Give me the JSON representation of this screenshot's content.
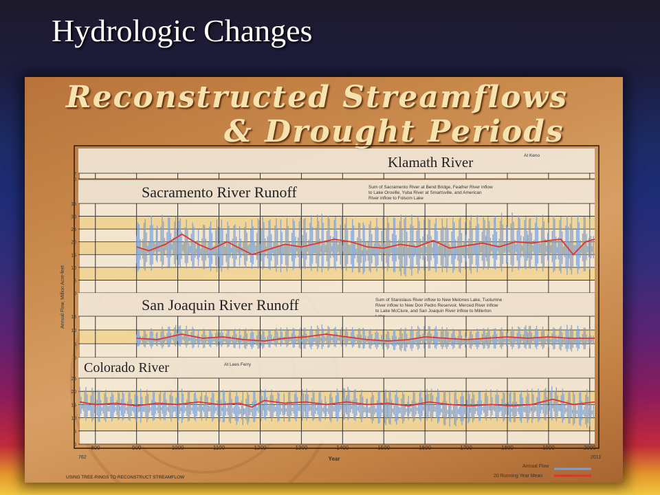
{
  "slide": {
    "title": "Hydrologic Changes"
  },
  "poster": {
    "title_line1": "Reconstructed Streamflows",
    "title_line2": "& Drought Periods",
    "footer": "USING TREE-RINGS TO RECONSTRUCT STREAMFLOW"
  },
  "colors": {
    "annual_flow": "#7b9fd1",
    "running_mean": "#e0332b",
    "band_yellow": "#f4dca0",
    "panel_light": "#f3ede2",
    "grid": "#000000"
  },
  "chart_data": {
    "type": "line",
    "xlabel": "Year",
    "ylabel": "Annual Flow, Million Acre-feet",
    "xlim": [
      762,
      2012
    ],
    "x_ticks": [
      800,
      900,
      1000,
      1100,
      1200,
      1300,
      1400,
      1500,
      1600,
      1700,
      1800,
      1900,
      2000
    ],
    "x_edge_labels": [
      "762",
      "2012"
    ],
    "legend": {
      "position": "bottom-right",
      "entries": [
        {
          "label": "Annual Flow",
          "color": "#7b9fd1"
        },
        {
          "label": "20 Running Year Mean",
          "color": "#e0332b"
        }
      ]
    },
    "panels": [
      {
        "name": "Klamath River",
        "subtitle": "At Keno",
        "ylim": [
          0,
          2
        ],
        "y_ticks": [
          0,
          2
        ],
        "start_year": 1400,
        "annual_flow": [],
        "running_mean": []
      },
      {
        "name": "Sacramento River Runoff",
        "subtitle": "Sum of Sacramento River at Bend Bridge, Feather River inflow to Lake Oroville, Yuba River at Smartsville, and American River inflow to Folsom Lake",
        "ylim": [
          0,
          35
        ],
        "y_ticks": [
          0,
          5,
          10,
          15,
          20,
          25,
          30,
          35
        ],
        "start_year": 900,
        "annual_flow": [
          {
            "year": 900,
            "min": 8,
            "max": 28
          },
          {
            "year": 950,
            "min": 9,
            "max": 31
          },
          {
            "year": 1000,
            "min": 10,
            "max": 30
          },
          {
            "year": 1050,
            "min": 9,
            "max": 27
          },
          {
            "year": 1100,
            "min": 8,
            "max": 29
          },
          {
            "year": 1150,
            "min": 10,
            "max": 27
          },
          {
            "year": 1200,
            "min": 9,
            "max": 30
          },
          {
            "year": 1250,
            "min": 8,
            "max": 29
          },
          {
            "year": 1300,
            "min": 9,
            "max": 30
          },
          {
            "year": 1350,
            "min": 8,
            "max": 31
          },
          {
            "year": 1400,
            "min": 9,
            "max": 30
          },
          {
            "year": 1450,
            "min": 7,
            "max": 28
          },
          {
            "year": 1500,
            "min": 9,
            "max": 30
          },
          {
            "year": 1550,
            "min": 6,
            "max": 31
          },
          {
            "year": 1600,
            "min": 8,
            "max": 30
          },
          {
            "year": 1650,
            "min": 8,
            "max": 29
          },
          {
            "year": 1700,
            "min": 7,
            "max": 31
          },
          {
            "year": 1750,
            "min": 9,
            "max": 30
          },
          {
            "year": 1800,
            "min": 8,
            "max": 32
          },
          {
            "year": 1850,
            "min": 9,
            "max": 30
          },
          {
            "year": 1900,
            "min": 8,
            "max": 31
          },
          {
            "year": 1950,
            "min": 7,
            "max": 30
          },
          {
            "year": 2000,
            "min": 8,
            "max": 31
          }
        ],
        "running_mean": [
          {
            "year": 900,
            "value": 18
          },
          {
            "year": 930,
            "value": 16.5
          },
          {
            "year": 970,
            "value": 19
          },
          {
            "year": 1010,
            "value": 23
          },
          {
            "year": 1050,
            "value": 19
          },
          {
            "year": 1080,
            "value": 17
          },
          {
            "year": 1120,
            "value": 20
          },
          {
            "year": 1150,
            "value": 17.5
          },
          {
            "year": 1180,
            "value": 15
          },
          {
            "year": 1220,
            "value": 17
          },
          {
            "year": 1260,
            "value": 19
          },
          {
            "year": 1300,
            "value": 18
          },
          {
            "year": 1340,
            "value": 19.5
          },
          {
            "year": 1380,
            "value": 21
          },
          {
            "year": 1420,
            "value": 20
          },
          {
            "year": 1460,
            "value": 18
          },
          {
            "year": 1500,
            "value": 17.5
          },
          {
            "year": 1540,
            "value": 19
          },
          {
            "year": 1580,
            "value": 18
          },
          {
            "year": 1620,
            "value": 20.5
          },
          {
            "year": 1660,
            "value": 17.5
          },
          {
            "year": 1700,
            "value": 18.5
          },
          {
            "year": 1740,
            "value": 19.5
          },
          {
            "year": 1780,
            "value": 18
          },
          {
            "year": 1820,
            "value": 20
          },
          {
            "year": 1860,
            "value": 19.5
          },
          {
            "year": 1900,
            "value": 20.5
          },
          {
            "year": 1930,
            "value": 21
          },
          {
            "year": 1960,
            "value": 15
          },
          {
            "year": 1990,
            "value": 20
          },
          {
            "year": 2012,
            "value": 21
          }
        ]
      },
      {
        "name": "San Joaquin River Runoff",
        "subtitle": "Sum of Stanislaus River inflow to New Melones Lake, Tuolumne River inflow to New Don Pedro Reservoir, Merced River inflow to Lake McClure, and San Joaquin River inflow to Millerton Lake",
        "ylim": [
          0,
          15
        ],
        "y_ticks": [
          0,
          5,
          10,
          15
        ],
        "start_year": 900,
        "annual_flow": [
          {
            "year": 900,
            "min": 4,
            "max": 10
          },
          {
            "year": 950,
            "min": 3,
            "max": 11
          },
          {
            "year": 1000,
            "min": 4,
            "max": 12
          },
          {
            "year": 1050,
            "min": 3,
            "max": 11
          },
          {
            "year": 1100,
            "min": 4,
            "max": 10
          },
          {
            "year": 1150,
            "min": 3,
            "max": 11
          },
          {
            "year": 1200,
            "min": 3,
            "max": 10
          },
          {
            "year": 1250,
            "min": 4,
            "max": 11
          },
          {
            "year": 1300,
            "min": 3,
            "max": 11
          },
          {
            "year": 1350,
            "min": 3,
            "max": 12
          },
          {
            "year": 1400,
            "min": 4,
            "max": 11
          },
          {
            "year": 1450,
            "min": 3,
            "max": 11
          },
          {
            "year": 1500,
            "min": 3,
            "max": 10
          },
          {
            "year": 1550,
            "min": 2,
            "max": 11
          },
          {
            "year": 1600,
            "min": 3,
            "max": 12
          },
          {
            "year": 1650,
            "min": 3,
            "max": 11
          },
          {
            "year": 1700,
            "min": 3,
            "max": 10
          },
          {
            "year": 1750,
            "min": 3,
            "max": 11
          },
          {
            "year": 1800,
            "min": 3,
            "max": 11
          },
          {
            "year": 1850,
            "min": 3,
            "max": 12
          },
          {
            "year": 1900,
            "min": 3,
            "max": 11
          },
          {
            "year": 1950,
            "min": 2,
            "max": 12
          },
          {
            "year": 2000,
            "min": 3,
            "max": 11
          }
        ],
        "running_mean": [
          {
            "year": 900,
            "value": 7
          },
          {
            "year": 950,
            "value": 6.5
          },
          {
            "year": 1010,
            "value": 8.5
          },
          {
            "year": 1060,
            "value": 7
          },
          {
            "year": 1110,
            "value": 7.5
          },
          {
            "year": 1160,
            "value": 6.5
          },
          {
            "year": 1210,
            "value": 6
          },
          {
            "year": 1260,
            "value": 7
          },
          {
            "year": 1310,
            "value": 7.5
          },
          {
            "year": 1360,
            "value": 8.5
          },
          {
            "year": 1410,
            "value": 7.5
          },
          {
            "year": 1460,
            "value": 6.5
          },
          {
            "year": 1510,
            "value": 6
          },
          {
            "year": 1560,
            "value": 6.5
          },
          {
            "year": 1600,
            "value": 7.5
          },
          {
            "year": 1650,
            "value": 7
          },
          {
            "year": 1700,
            "value": 6.5
          },
          {
            "year": 1750,
            "value": 7
          },
          {
            "year": 1800,
            "value": 7.5
          },
          {
            "year": 1850,
            "value": 7
          },
          {
            "year": 1900,
            "value": 7.5
          },
          {
            "year": 1950,
            "value": 7
          },
          {
            "year": 2012,
            "value": 7
          }
        ]
      },
      {
        "name": "Colorado River",
        "subtitle": "At Lees Ferry",
        "ylim": [
          0,
          25
        ],
        "y_ticks": [
          0,
          5,
          10,
          15,
          20,
          25
        ],
        "start_year": 762,
        "annual_flow": [
          {
            "year": 762,
            "min": 9,
            "max": 22
          },
          {
            "year": 810,
            "min": 8,
            "max": 21
          },
          {
            "year": 860,
            "min": 9,
            "max": 20
          },
          {
            "year": 910,
            "min": 8,
            "max": 21
          },
          {
            "year": 960,
            "min": 9,
            "max": 20
          },
          {
            "year": 1010,
            "min": 8,
            "max": 21
          },
          {
            "year": 1060,
            "min": 9,
            "max": 20
          },
          {
            "year": 1110,
            "min": 8,
            "max": 21
          },
          {
            "year": 1160,
            "min": 7,
            "max": 20
          },
          {
            "year": 1210,
            "min": 9,
            "max": 21
          },
          {
            "year": 1260,
            "min": 8,
            "max": 20
          },
          {
            "year": 1310,
            "min": 9,
            "max": 21
          },
          {
            "year": 1360,
            "min": 8,
            "max": 20
          },
          {
            "year": 1410,
            "min": 9,
            "max": 22
          },
          {
            "year": 1460,
            "min": 8,
            "max": 20
          },
          {
            "year": 1510,
            "min": 7,
            "max": 21
          },
          {
            "year": 1560,
            "min": 8,
            "max": 20
          },
          {
            "year": 1610,
            "min": 9,
            "max": 21
          },
          {
            "year": 1660,
            "min": 6,
            "max": 21
          },
          {
            "year": 1710,
            "min": 8,
            "max": 20
          },
          {
            "year": 1760,
            "min": 9,
            "max": 21
          },
          {
            "year": 1810,
            "min": 8,
            "max": 20
          },
          {
            "year": 1860,
            "min": 8,
            "max": 21
          },
          {
            "year": 1910,
            "min": 9,
            "max": 22
          },
          {
            "year": 1960,
            "min": 7,
            "max": 20
          },
          {
            "year": 2000,
            "min": 6,
            "max": 21
          }
        ],
        "running_mean": [
          {
            "year": 762,
            "value": 16
          },
          {
            "year": 800,
            "value": 15
          },
          {
            "year": 850,
            "value": 15.5
          },
          {
            "year": 900,
            "value": 14.5
          },
          {
            "year": 950,
            "value": 15.5
          },
          {
            "year": 1000,
            "value": 15
          },
          {
            "year": 1050,
            "value": 16
          },
          {
            "year": 1100,
            "value": 15
          },
          {
            "year": 1150,
            "value": 15.5
          },
          {
            "year": 1180,
            "value": 14
          },
          {
            "year": 1210,
            "value": 16.5
          },
          {
            "year": 1260,
            "value": 15.5
          },
          {
            "year": 1310,
            "value": 16
          },
          {
            "year": 1360,
            "value": 15
          },
          {
            "year": 1410,
            "value": 16
          },
          {
            "year": 1460,
            "value": 15
          },
          {
            "year": 1510,
            "value": 15.5
          },
          {
            "year": 1560,
            "value": 14.5
          },
          {
            "year": 1610,
            "value": 16
          },
          {
            "year": 1660,
            "value": 15
          },
          {
            "year": 1710,
            "value": 14.5
          },
          {
            "year": 1760,
            "value": 15
          },
          {
            "year": 1810,
            "value": 14.5
          },
          {
            "year": 1860,
            "value": 15
          },
          {
            "year": 1910,
            "value": 17
          },
          {
            "year": 1960,
            "value": 15
          },
          {
            "year": 2012,
            "value": 16
          }
        ]
      }
    ]
  }
}
